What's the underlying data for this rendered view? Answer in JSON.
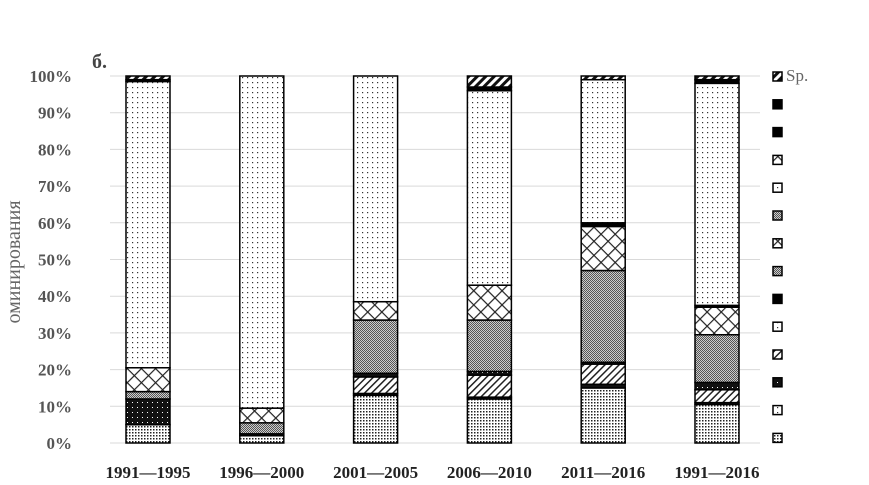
{
  "panel_label": "б.",
  "chart_data": {
    "type": "bar",
    "stacked": true,
    "percent": true,
    "ylabel": "оминирования",
    "ylim": [
      0,
      100
    ],
    "yticks": [
      "0%",
      "10%",
      "20%",
      "30%",
      "40%",
      "50%",
      "60%",
      "70%",
      "80%",
      "90%",
      "100%"
    ],
    "grid": true,
    "legend_position": "right",
    "legend_visible_labels": [
      "Sp."
    ],
    "categories": [
      "1991—1995",
      "1996—2000",
      "2001—2005",
      "2006—2010",
      "2011—2016",
      "1991—2016"
    ],
    "series": [
      {
        "pattern": "dense-dots",
        "values": [
          5,
          2,
          13,
          12,
          15,
          10.5
        ]
      },
      {
        "pattern": "black-thin",
        "values": [
          0,
          0.5,
          0.5,
          0.5,
          1,
          0.5
        ]
      },
      {
        "pattern": "diagonal",
        "values": [
          0,
          0,
          4.5,
          6,
          5.5,
          3.5
        ]
      },
      {
        "pattern": "black-dots",
        "values": [
          7,
          0,
          1,
          1,
          0.5,
          2
        ]
      },
      {
        "pattern": "grey-dense",
        "values": [
          2,
          3,
          14.5,
          14,
          25,
          13
        ]
      },
      {
        "pattern": "crosshatch",
        "values": [
          6.5,
          4,
          5,
          9.5,
          12,
          7.5
        ]
      },
      {
        "pattern": "black",
        "values": [
          0,
          0,
          0,
          0,
          1,
          0.5
        ]
      },
      {
        "pattern": "sparse-dots",
        "values": [
          78,
          90.5,
          61.5,
          53,
          39,
          60.5
        ]
      },
      {
        "pattern": "black",
        "values": [
          0.5,
          0,
          0,
          1,
          0,
          1
        ]
      },
      {
        "name": "Sp.",
        "pattern": "wide-diagonal",
        "values": [
          1,
          0,
          0,
          3,
          1,
          1
        ]
      }
    ]
  }
}
